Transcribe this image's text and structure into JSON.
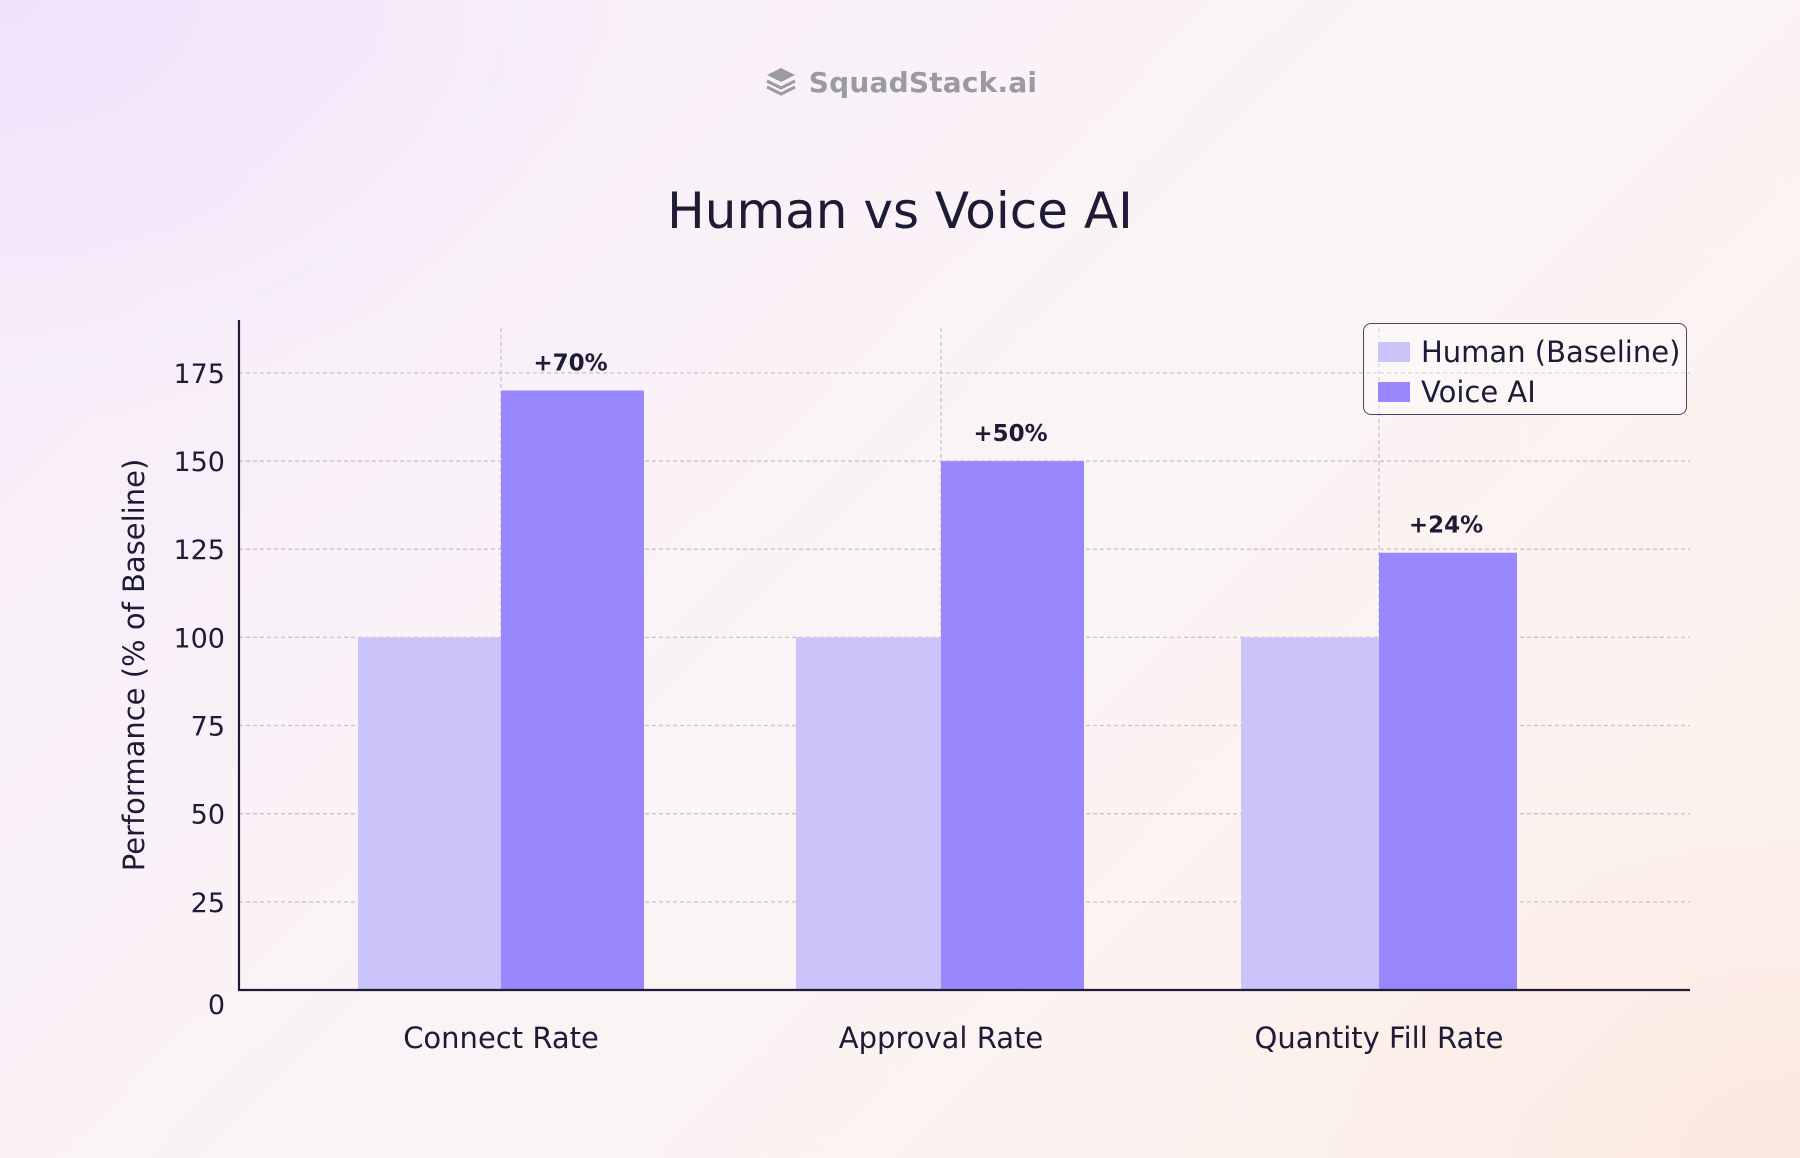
{
  "brand": {
    "name": "SquadStack.ai",
    "icon": "stacked-layers-icon"
  },
  "colors": {
    "human": "#cbc4fb",
    "voice_ai": "#9988fd",
    "axis": "#1d1b35",
    "grid": "#c9c2cc",
    "text": "#1d1b35"
  },
  "chart_data": {
    "type": "bar",
    "title": "Human vs Voice AI",
    "xlabel": "",
    "ylabel": "Performance (% of Baseline)",
    "categories": [
      "Connect Rate",
      "Approval Rate",
      "Quantity Fill Rate"
    ],
    "series": [
      {
        "name": "Human (Baseline)",
        "values": [
          100,
          100,
          100
        ]
      },
      {
        "name": "Voice AI",
        "values": [
          170,
          150,
          124
        ]
      }
    ],
    "annotations": [
      "+70%",
      "+50%",
      "+24%"
    ],
    "ylim": [
      0,
      190
    ],
    "yticks": [
      0,
      25,
      50,
      75,
      100,
      125,
      150,
      175
    ],
    "grid": true,
    "legend_position": "top-right"
  }
}
